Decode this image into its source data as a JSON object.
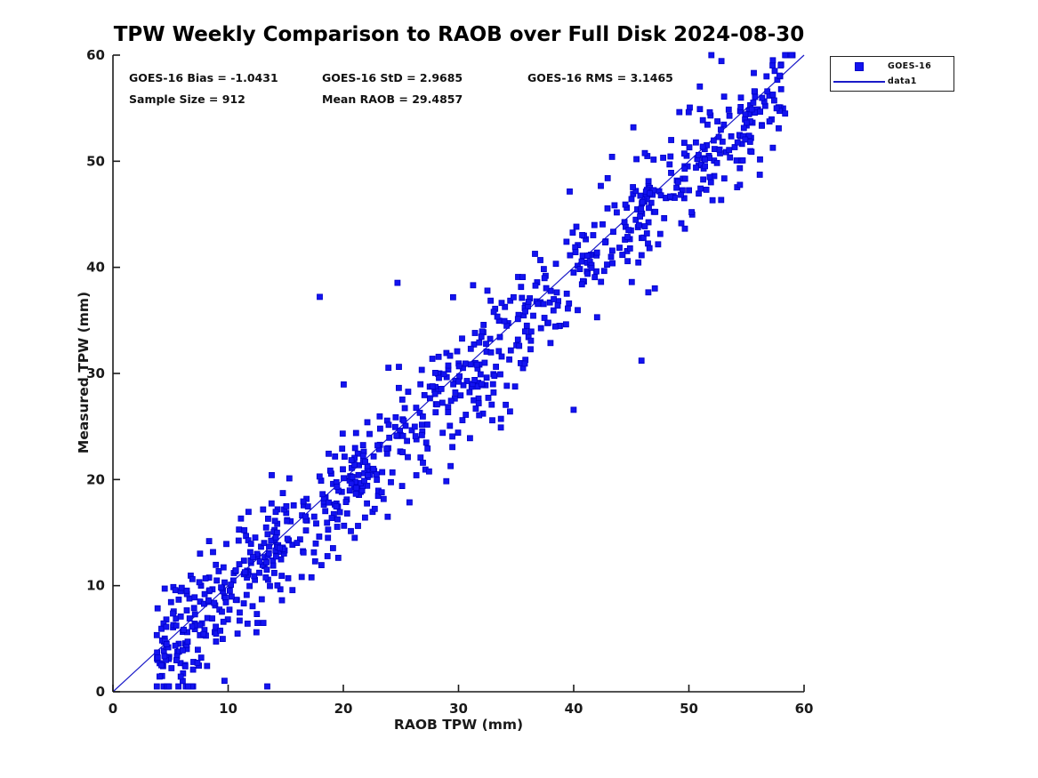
{
  "title": "TPW Weekly Comparison to RAOB over Full Disk 2024-08-30",
  "stats": {
    "bias": "GOES-16 Bias = -1.0431",
    "std": "GOES-16 StD = 2.9685",
    "rms": "GOES-16 RMS = 3.1465",
    "sample_size": "Sample Size = 912",
    "mean_raob": "Mean RAOB = 29.4857"
  },
  "legend": {
    "items": [
      {
        "label": "GOES-16",
        "swatch": "square-marker",
        "color": "#1313f0"
      },
      {
        "label": "data1",
        "swatch": "line",
        "color": "#1a1ac8"
      }
    ]
  },
  "chart_data": {
    "type": "scatter",
    "title": "TPW Weekly Comparison to RAOB over Full Disk 2024-08-30",
    "xlabel": "RAOB TPW (mm)",
    "ylabel": "Measured TPW (mm)",
    "xlim": [
      0,
      60
    ],
    "ylim": [
      0,
      60
    ],
    "xticks": [
      0,
      10,
      20,
      30,
      40,
      50,
      60
    ],
    "yticks": [
      0,
      10,
      20,
      30,
      40,
      50,
      60
    ],
    "grid": false,
    "legend_position": "outside-top-right",
    "annotations": [
      "GOES-16 Bias = -1.0431",
      "GOES-16 StD = 2.9685",
      "GOES-16 RMS = 3.1465",
      "Sample Size = 912",
      "Mean RAOB = 29.4857"
    ],
    "series": [
      {
        "name": "GOES-16",
        "type": "scatter",
        "marker": "square",
        "marker_size_px": 6,
        "marker_color": "#1313f0",
        "marker_edge_color": "#0000c8",
        "n_points": 912,
        "x_range": [
          3.8,
          59.0
        ],
        "relationship": "y = x + bias + noise",
        "bias": -1.0431,
        "std": 2.9685,
        "rms": 3.1465,
        "mean_x": 29.4857,
        "outlier_fraction": 0.055,
        "seed": 20240830
      },
      {
        "name": "data1",
        "type": "line",
        "color": "#1a1ac8",
        "points": [
          [
            0,
            0
          ],
          [
            60,
            60
          ]
        ]
      }
    ]
  },
  "colors": {
    "marker_blue": "#1313f0",
    "line_blue": "#1a1ac8",
    "axis": "#1a1a1a",
    "background": "#ffffff"
  }
}
